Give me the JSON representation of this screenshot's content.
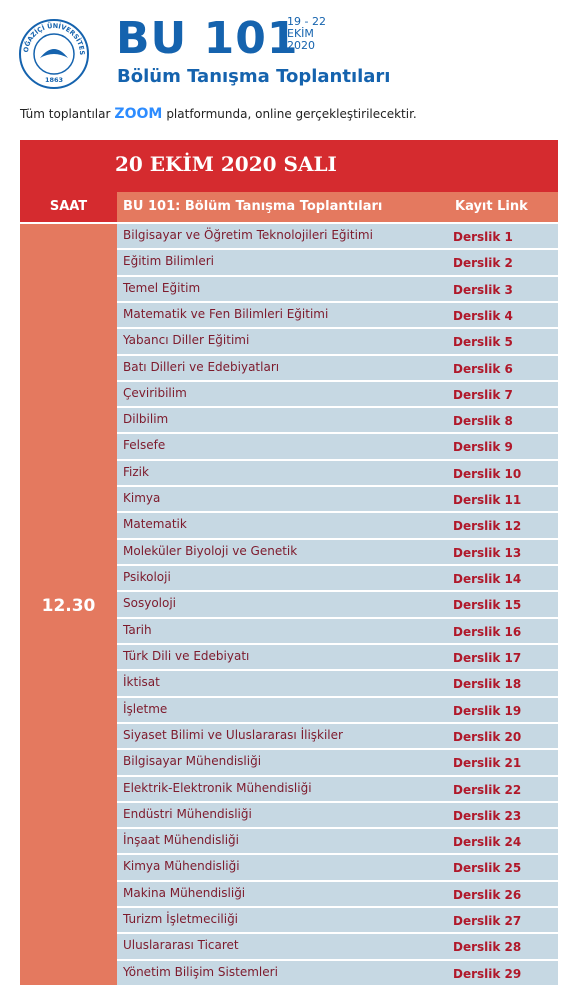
{
  "header": {
    "logo": {
      "name": "BOĞAZİÇİ ÜNİVERSİTESİ",
      "year": "1863"
    },
    "title": "BU 101",
    "dates": [
      "19 - 22",
      "EKİM",
      "2020"
    ],
    "subtitle": "Bölüm Tanışma Toplantıları",
    "notice": [
      "Tüm toplantılar",
      "ZOOM",
      "platformunda, online gerçekleştirilecektir."
    ]
  },
  "table": {
    "banner": "20 EKİM 2020 SALI",
    "columns": [
      "SAAT",
      "BU 101: Bölüm Tanışma Toplantıları",
      "Kayıt Link"
    ],
    "time": "12.30",
    "rows": [
      [
        "Bilgisayar ve Öğretim Teknolojileri Eğitimi",
        "Derslik 1"
      ],
      [
        "Eğitim Bilimleri",
        "Derslik 2"
      ],
      [
        "Temel Eğitim",
        "Derslik 3"
      ],
      [
        "Matematik ve Fen Bilimleri Eğitimi",
        "Derslik 4"
      ],
      [
        "Yabancı Diller Eğitimi",
        "Derslik 5"
      ],
      [
        "Batı Dilleri ve Edebiyatları",
        "Derslik 6"
      ],
      [
        "Çeviribilim",
        "Derslik 7"
      ],
      [
        "Dilbilim",
        "Derslik 8"
      ],
      [
        "Felsefe",
        "Derslik 9"
      ],
      [
        "Fizik",
        "Derslik 10"
      ],
      [
        "Kimya",
        "Derslik 11"
      ],
      [
        "Matematik",
        "Derslik 12"
      ],
      [
        "Moleküler Biyoloji ve Genetik",
        "Derslik 13"
      ],
      [
        "Psikoloji",
        "Derslik 14"
      ],
      [
        "Sosyoloji",
        "Derslik 15"
      ],
      [
        "Tarih",
        "Derslik 16"
      ],
      [
        "Türk Dili ve Edebiyatı",
        "Derslik 17"
      ],
      [
        "İktisat",
        "Derslik 18"
      ],
      [
        "İşletme",
        "Derslik 19"
      ],
      [
        "Siyaset Bilimi ve Uluslararası İlişkiler",
        "Derslik 20"
      ],
      [
        "Bilgisayar Mühendisliği",
        "Derslik 21"
      ],
      [
        "Elektrik-Elektronik Mühendisliği",
        "Derslik 22"
      ],
      [
        "Endüstri Mühendisliği",
        "Derslik 23"
      ],
      [
        "İnşaat Mühendisliği",
        "Derslik 24"
      ],
      [
        "Kimya Mühendisliği",
        "Derslik 25"
      ],
      [
        "Makina Mühendisliği",
        "Derslik 26"
      ],
      [
        "Turizm İşletmeciliği",
        "Derslik 27"
      ],
      [
        "Uluslararası Ticaret",
        "Derslik 28"
      ],
      [
        "Yönetim Bilişim Sistemleri",
        "Derslik 29"
      ]
    ]
  }
}
